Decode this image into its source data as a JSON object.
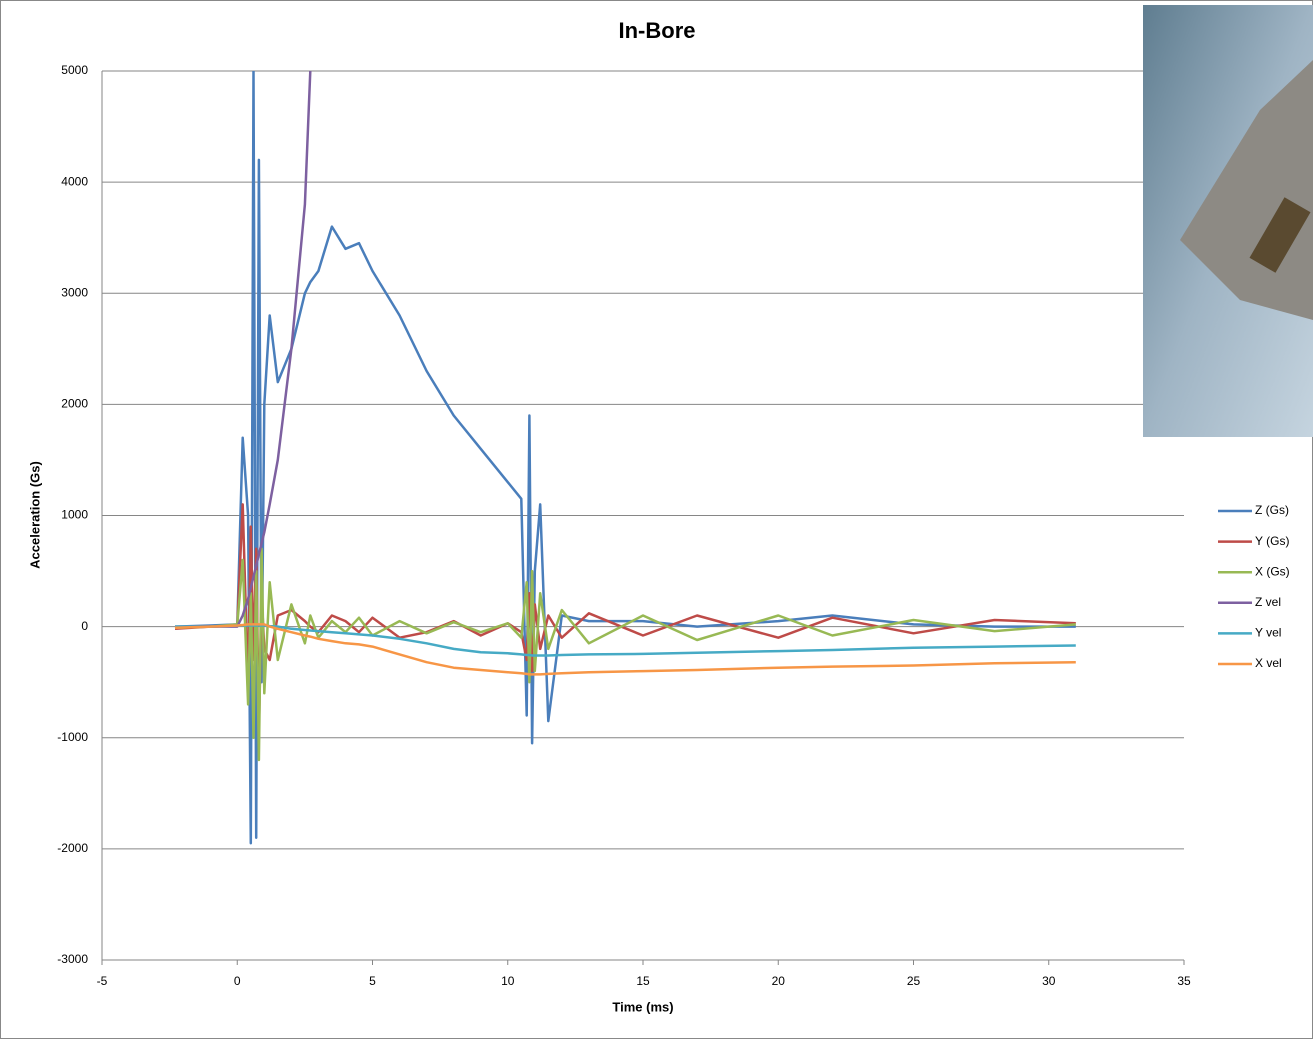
{
  "chart_data": {
    "type": "line",
    "title": "In-Bore",
    "x_label": "Time (ms)",
    "y_label": "Acceleration (Gs)",
    "x": [
      -2.3,
      -1,
      0,
      0.2,
      0.4,
      0.5,
      0.6,
      0.7,
      0.8,
      0.9,
      1,
      1.2,
      1.5,
      2,
      2.5,
      2.7,
      3,
      3.5,
      4,
      4.5,
      5,
      6,
      7,
      8,
      9,
      10,
      10.5,
      10.7,
      10.8,
      10.9,
      11,
      11.2,
      11.5,
      12,
      13,
      15,
      17,
      20,
      22,
      25,
      28,
      31
    ],
    "series": [
      {
        "name": "Z (Gs)",
        "color": "#4a7ebb",
        "values": [
          0,
          10,
          20,
          1700,
          1000,
          -1950,
          5000,
          -1900,
          4200,
          -500,
          2000,
          2800,
          2200,
          2500,
          3000,
          3100,
          3200,
          3600,
          3400,
          3450,
          3200,
          2800,
          2300,
          1900,
          1600,
          1300,
          1150,
          -800,
          1900,
          -1050,
          500,
          1100,
          -850,
          100,
          50,
          50,
          0,
          50,
          100,
          20,
          0,
          0
        ]
      },
      {
        "name": "Y (Gs)",
        "color": "#be4b48",
        "values": [
          -20,
          0,
          10,
          1100,
          -550,
          900,
          -300,
          700,
          -950,
          300,
          -200,
          -300,
          100,
          150,
          50,
          0,
          -50,
          100,
          50,
          -50,
          80,
          -100,
          -50,
          50,
          -80,
          30,
          -50,
          -300,
          300,
          -400,
          200,
          -200,
          100,
          -100,
          120,
          -80,
          100,
          -100,
          80,
          -60,
          60,
          30
        ]
      },
      {
        "name": "X (Gs)",
        "color": "#98b954",
        "values": [
          -10,
          0,
          20,
          600,
          -700,
          300,
          -1000,
          500,
          -1200,
          700,
          -600,
          400,
          -300,
          200,
          -150,
          100,
          -100,
          50,
          -50,
          80,
          -80,
          50,
          -60,
          40,
          -50,
          30,
          -100,
          400,
          -500,
          500,
          -400,
          300,
          -200,
          150,
          -150,
          100,
          -120,
          100,
          -80,
          60,
          -40,
          20
        ]
      },
      {
        "name": "Z vel",
        "color": "#7d60a0",
        "values": [
          0,
          0,
          0,
          100,
          250,
          350,
          450,
          550,
          650,
          750,
          850,
          1100,
          1500,
          2500,
          3800,
          5000,
          null,
          null,
          null,
          null,
          null,
          null,
          null,
          null,
          null,
          null,
          null,
          null,
          null,
          null,
          null,
          null,
          null,
          null,
          null,
          null,
          null,
          null,
          null,
          null,
          null,
          null
        ]
      },
      {
        "name": "Y vel",
        "color": "#46aac5",
        "values": [
          0,
          0,
          10,
          10,
          10,
          10,
          10,
          10,
          10,
          10,
          10,
          5,
          0,
          -20,
          -30,
          -35,
          -40,
          -50,
          -60,
          -70,
          -80,
          -110,
          -150,
          -200,
          -230,
          -240,
          -250,
          -255,
          -255,
          -260,
          -260,
          -260,
          -260,
          -255,
          -250,
          -245,
          -235,
          -220,
          -210,
          -190,
          -180,
          -170
        ]
      },
      {
        "name": "X vel",
        "color": "#f79646",
        "values": [
          -10,
          0,
          10,
          15,
          20,
          20,
          20,
          20,
          20,
          20,
          20,
          0,
          -20,
          -50,
          -80,
          -90,
          -110,
          -130,
          -150,
          -160,
          -180,
          -250,
          -320,
          -370,
          -390,
          -410,
          -420,
          -425,
          -430,
          -430,
          -430,
          -430,
          -425,
          -420,
          -410,
          -400,
          -390,
          -370,
          -360,
          -350,
          -330,
          -320
        ]
      }
    ],
    "xlim": [
      -5,
      35
    ],
    "xticks": [
      -5,
      0,
      5,
      10,
      15,
      20,
      25,
      30,
      35
    ],
    "ylim": [
      -3000,
      5000
    ],
    "yticks": [
      -3000,
      -2000,
      -1000,
      0,
      1000,
      2000,
      3000,
      4000,
      5000
    ],
    "grid": true,
    "legend": "right"
  }
}
